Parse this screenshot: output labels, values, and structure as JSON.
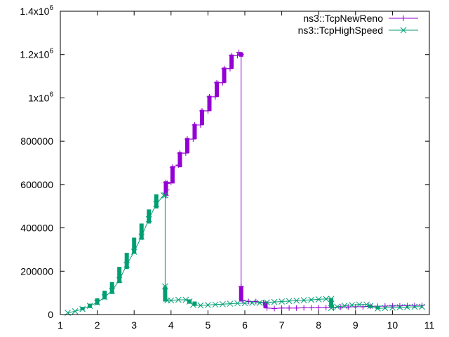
{
  "chart_data": {
    "type": "line",
    "title": "",
    "xlabel": "",
    "ylabel": "",
    "xlim": [
      1,
      11
    ],
    "ylim": [
      0,
      1400000
    ],
    "grid": false,
    "legend_position": "top-right",
    "x_ticks": [
      {
        "value": 1,
        "label": "1"
      },
      {
        "value": 2,
        "label": "2"
      },
      {
        "value": 3,
        "label": "3"
      },
      {
        "value": 4,
        "label": "4"
      },
      {
        "value": 5,
        "label": "5"
      },
      {
        "value": 6,
        "label": "6"
      },
      {
        "value": 7,
        "label": "7"
      },
      {
        "value": 8,
        "label": "8"
      },
      {
        "value": 9,
        "label": "9"
      },
      {
        "value": 10,
        "label": "10"
      },
      {
        "value": 11,
        "label": "11"
      }
    ],
    "y_ticks": [
      {
        "value": 0,
        "label": "0"
      },
      {
        "value": 200000,
        "label": "200000"
      },
      {
        "value": 400000,
        "label": "400000"
      },
      {
        "value": 600000,
        "label": "600000"
      },
      {
        "value": 800000,
        "label": "800000"
      },
      {
        "value": 1000000,
        "label": "1x10",
        "exp": "6"
      },
      {
        "value": 1200000,
        "label": "1.2x10",
        "exp": "6"
      },
      {
        "value": 1400000,
        "label": "1.4x10",
        "exp": "6"
      }
    ],
    "series": [
      {
        "name": "ns3::TcpNewReno",
        "color": "#9400d3",
        "marker": "plus",
        "points": [
          [
            3.86,
            550000
          ],
          [
            3.86,
            610000
          ],
          [
            3.88,
            575000
          ],
          [
            3.9,
            605000
          ],
          [
            4.0,
            610000
          ],
          [
            4.04,
            680000
          ],
          [
            4.2,
            690000
          ],
          [
            4.24,
            745000
          ],
          [
            4.4,
            745000
          ],
          [
            4.44,
            810000
          ],
          [
            4.6,
            810000
          ],
          [
            4.64,
            875000
          ],
          [
            4.8,
            875000
          ],
          [
            4.84,
            940000
          ],
          [
            5.0,
            940000
          ],
          [
            5.04,
            1005000
          ],
          [
            5.2,
            1005000
          ],
          [
            5.24,
            1070000
          ],
          [
            5.4,
            1070000
          ],
          [
            5.44,
            1135000
          ],
          [
            5.6,
            1135000
          ],
          [
            5.64,
            1195000
          ],
          [
            5.8,
            1195000
          ],
          [
            5.84,
            1210000
          ],
          [
            5.9,
            1200000
          ],
          [
            5.9,
            130000
          ],
          [
            5.94,
            65000
          ],
          [
            6.1,
            60000
          ],
          [
            6.3,
            60000
          ],
          [
            6.5,
            55000
          ],
          [
            6.6,
            30000
          ],
          [
            6.8,
            28000
          ],
          [
            7.0,
            30000
          ],
          [
            7.2,
            30000
          ],
          [
            7.4,
            30000
          ],
          [
            7.6,
            31000
          ],
          [
            7.8,
            31000
          ],
          [
            8.0,
            32000
          ],
          [
            8.2,
            32000
          ],
          [
            8.4,
            33000
          ],
          [
            8.6,
            34000
          ],
          [
            8.8,
            35000
          ],
          [
            9.0,
            36000
          ],
          [
            9.2,
            36000
          ],
          [
            9.4,
            38000
          ],
          [
            9.6,
            38000
          ],
          [
            9.8,
            39000
          ],
          [
            10.0,
            40000
          ],
          [
            10.2,
            40000
          ],
          [
            10.4,
            41000
          ],
          [
            10.6,
            42000
          ],
          [
            10.8,
            42000
          ]
        ],
        "blocks": [
          [
            3.86,
            550000,
            615000
          ],
          [
            4.04,
            605000,
            685000
          ],
          [
            4.24,
            680000,
            750000
          ],
          [
            4.44,
            745000,
            815000
          ],
          [
            4.64,
            810000,
            880000
          ],
          [
            4.84,
            875000,
            945000
          ],
          [
            5.04,
            940000,
            1010000
          ],
          [
            5.24,
            1005000,
            1075000
          ],
          [
            5.44,
            1070000,
            1140000
          ],
          [
            5.64,
            1135000,
            1200000
          ],
          [
            5.9,
            1190000,
            1210000
          ],
          [
            5.9,
            60000,
            130000
          ],
          [
            6.56,
            30000,
            60000
          ]
        ]
      },
      {
        "name": "ns3::TcpHighSpeed",
        "color": "#009e73",
        "marker": "x",
        "points": [
          [
            1.2,
            8000
          ],
          [
            1.4,
            15000
          ],
          [
            1.6,
            25000
          ],
          [
            1.8,
            40000
          ],
          [
            2.0,
            55000
          ],
          [
            2.2,
            80000
          ],
          [
            2.4,
            110000
          ],
          [
            2.6,
            160000
          ],
          [
            2.8,
            230000
          ],
          [
            3.0,
            290000
          ],
          [
            3.2,
            360000
          ],
          [
            3.4,
            440000
          ],
          [
            3.6,
            510000
          ],
          [
            3.8,
            550000
          ],
          [
            3.84,
            550000
          ],
          [
            3.84,
            130000
          ],
          [
            3.9,
            65000
          ],
          [
            4.0,
            65000
          ],
          [
            4.2,
            68000
          ],
          [
            4.4,
            68000
          ],
          [
            4.5,
            60000
          ],
          [
            4.6,
            45000
          ],
          [
            4.8,
            42000
          ],
          [
            5.0,
            44000
          ],
          [
            5.2,
            46000
          ],
          [
            5.4,
            48000
          ],
          [
            5.6,
            50000
          ],
          [
            5.8,
            52000
          ],
          [
            6.0,
            52000
          ],
          [
            6.2,
            54000
          ],
          [
            6.4,
            54000
          ],
          [
            6.6,
            56000
          ],
          [
            6.8,
            58000
          ],
          [
            7.0,
            60000
          ],
          [
            7.2,
            62000
          ],
          [
            7.4,
            64000
          ],
          [
            7.6,
            66000
          ],
          [
            7.8,
            68000
          ],
          [
            8.0,
            70000
          ],
          [
            8.2,
            72000
          ],
          [
            8.34,
            72000
          ],
          [
            8.34,
            30000
          ],
          [
            8.5,
            36000
          ],
          [
            8.7,
            40000
          ],
          [
            8.9,
            44000
          ],
          [
            9.1,
            46000
          ],
          [
            9.3,
            46000
          ],
          [
            9.4,
            40000
          ],
          [
            9.6,
            28000
          ],
          [
            9.8,
            30000
          ],
          [
            10.0,
            32000
          ],
          [
            10.2,
            34000
          ],
          [
            10.4,
            34000
          ],
          [
            10.6,
            36000
          ],
          [
            10.8,
            36000
          ]
        ],
        "blocks": [
          [
            1.6,
            20000,
            35000
          ],
          [
            1.8,
            30000,
            50000
          ],
          [
            2.0,
            45000,
            75000
          ],
          [
            2.2,
            70000,
            110000
          ],
          [
            2.4,
            95000,
            150000
          ],
          [
            2.6,
            145000,
            220000
          ],
          [
            2.8,
            210000,
            285000
          ],
          [
            3.0,
            280000,
            355000
          ],
          [
            3.2,
            345000,
            420000
          ],
          [
            3.4,
            420000,
            485000
          ],
          [
            3.6,
            490000,
            555000
          ],
          [
            3.84,
            60000,
            130000
          ],
          [
            4.5,
            50000,
            70000
          ],
          [
            4.64,
            40000,
            60000
          ],
          [
            8.34,
            30000,
            75000
          ],
          [
            9.4,
            30000,
            45000
          ],
          [
            9.6,
            25000,
            40000
          ]
        ]
      }
    ]
  }
}
